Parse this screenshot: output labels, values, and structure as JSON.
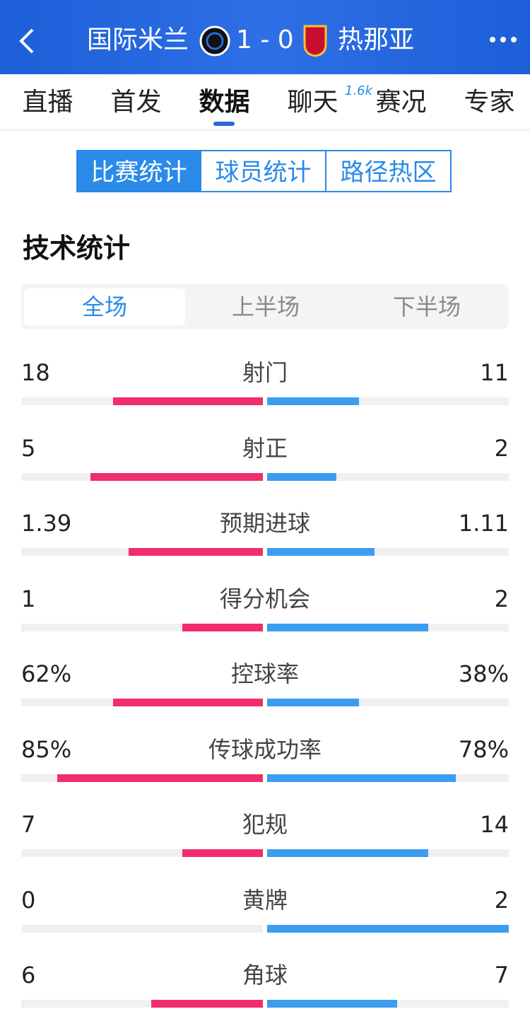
{
  "header": {
    "home_team": "国际米兰",
    "score": "1 - 0",
    "away_team": "热那亚"
  },
  "tabs": {
    "items": [
      "直播",
      "首发",
      "数据",
      "聊天",
      "赛况",
      "专家"
    ],
    "active": 2,
    "badge": "1.6k"
  },
  "segments": {
    "items": [
      "比赛统计",
      "球员统计",
      "路径热区"
    ],
    "active": 0
  },
  "section_title": "技术统计",
  "periods": {
    "items": [
      "全场",
      "上半场",
      "下半场"
    ],
    "active": 0
  },
  "stats": {
    "home_color": "#f12e6b",
    "away_color": "#3b9df0",
    "rows": [
      {
        "name": "射门",
        "home": 18,
        "away": 11
      },
      {
        "name": "射正",
        "home": 5,
        "away": 2
      },
      {
        "name": "预期进球",
        "home": 1.39,
        "away": 1.11
      },
      {
        "name": "得分机会",
        "home": 1,
        "away": 2
      },
      {
        "name": "控球率",
        "home": 62,
        "away": 38,
        "home_label": "62%",
        "away_label": "38%"
      },
      {
        "name": "传球成功率",
        "home": 85,
        "away": 78,
        "home_label": "85%",
        "away_label": "78%"
      },
      {
        "name": "犯规",
        "home": 7,
        "away": 14
      },
      {
        "name": "黄牌",
        "home": 0,
        "away": 2
      },
      {
        "name": "角球",
        "home": 6,
        "away": 7
      }
    ]
  }
}
